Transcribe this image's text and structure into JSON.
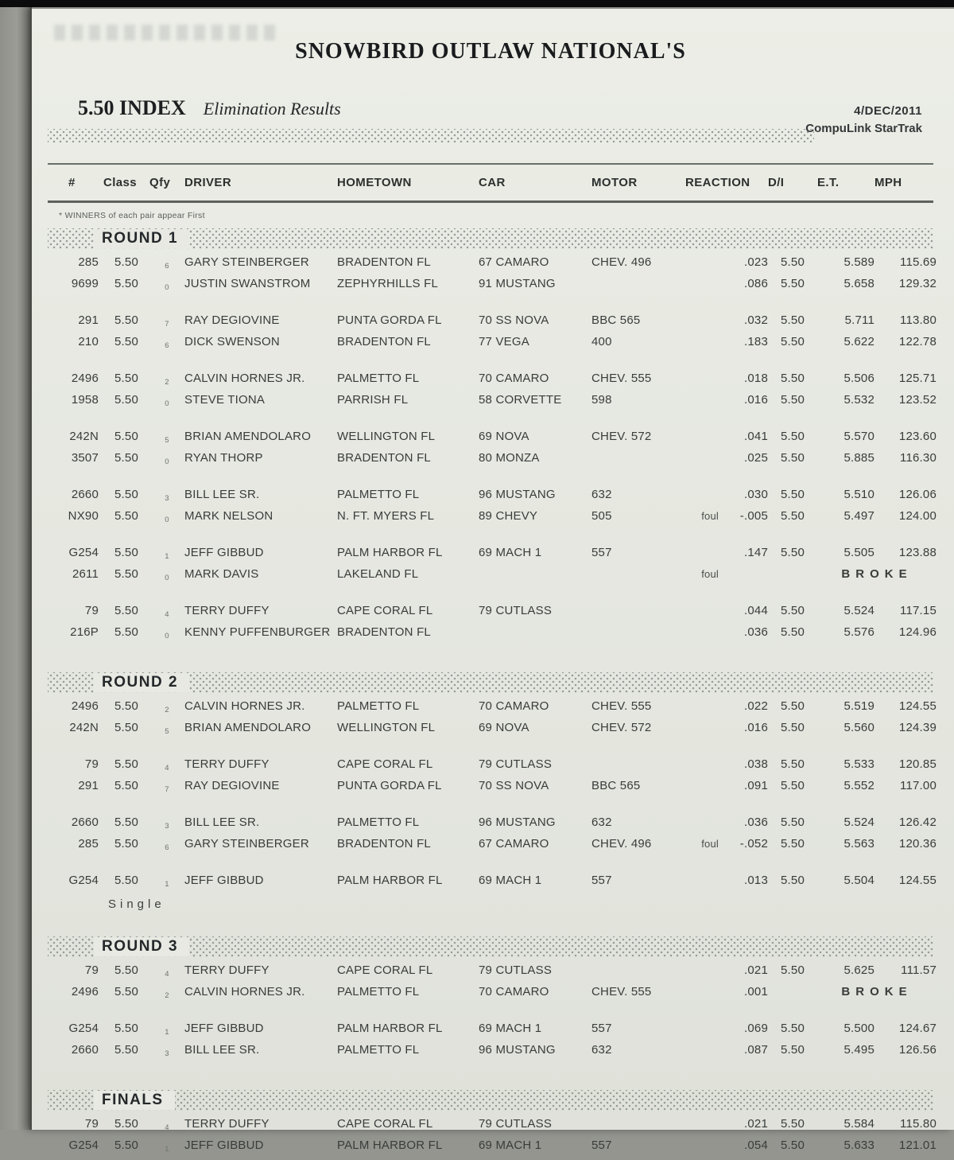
{
  "page": {
    "title": "SNOWBIRD OUTLAW NATIONAL'S",
    "index_label": "5.50 INDEX",
    "subtitle": "Elimination Results",
    "date": "4/DEC/2011",
    "system": "CompuLink StarTrak",
    "note": "* WINNERS of each pair appear First"
  },
  "columns": [
    "#",
    "Class",
    "Qfy",
    "DRIVER",
    "HOMETOWN",
    "CAR",
    "MOTOR",
    "REACTION",
    "D/I",
    "E.T.",
    "MPH"
  ],
  "sections": [
    {
      "label": "ROUND 1",
      "pairs": [
        {
          "rows": [
            {
              "num": "285",
              "cls": "5.50",
              "qfy": "6",
              "driver": "GARY STEINBERGER",
              "home": "BRADENTON FL",
              "car": "67 CAMARO",
              "motor": "CHEV. 496",
              "foul": "",
              "rx": ".023",
              "di": "5.50",
              "et": "5.589",
              "mph": "115.69"
            },
            {
              "num": "9699",
              "cls": "5.50",
              "qfy": "0",
              "driver": "JUSTIN SWANSTROM",
              "home": "ZEPHYRHILLS FL",
              "car": "91 MUSTANG",
              "motor": "",
              "foul": "",
              "rx": ".086",
              "di": "5.50",
              "et": "5.658",
              "mph": "129.32"
            }
          ]
        },
        {
          "rows": [
            {
              "num": "291",
              "cls": "5.50",
              "qfy": "7",
              "driver": "RAY DEGIOVINE",
              "home": "PUNTA GORDA FL",
              "car": "70 SS NOVA",
              "motor": "BBC 565",
              "foul": "",
              "rx": ".032",
              "di": "5.50",
              "et": "5.711",
              "mph": "113.80"
            },
            {
              "num": "210",
              "cls": "5.50",
              "qfy": "6",
              "driver": "DICK SWENSON",
              "home": "BRADENTON FL",
              "car": "77 VEGA",
              "motor": "400",
              "foul": "",
              "rx": ".183",
              "di": "5.50",
              "et": "5.622",
              "mph": "122.78"
            }
          ]
        },
        {
          "rows": [
            {
              "num": "2496",
              "cls": "5.50",
              "qfy": "2",
              "driver": "CALVIN HORNES JR.",
              "home": "PALMETTO FL",
              "car": "70 CAMARO",
              "motor": "CHEV. 555",
              "foul": "",
              "rx": ".018",
              "di": "5.50",
              "et": "5.506",
              "mph": "125.71"
            },
            {
              "num": "1958",
              "cls": "5.50",
              "qfy": "0",
              "driver": "STEVE TIONA",
              "home": "PARRISH FL",
              "car": "58 CORVETTE",
              "motor": "598",
              "foul": "",
              "rx": ".016",
              "di": "5.50",
              "et": "5.532",
              "mph": "123.52"
            }
          ]
        },
        {
          "rows": [
            {
              "num": "242N",
              "cls": "5.50",
              "qfy": "5",
              "driver": "BRIAN AMENDOLARO",
              "home": "WELLINGTON FL",
              "car": "69 NOVA",
              "motor": "CHEV. 572",
              "foul": "",
              "rx": ".041",
              "di": "5.50",
              "et": "5.570",
              "mph": "123.60"
            },
            {
              "num": "3507",
              "cls": "5.50",
              "qfy": "0",
              "driver": "RYAN THORP",
              "home": "BRADENTON FL",
              "car": "80 MONZA",
              "motor": "",
              "foul": "",
              "rx": ".025",
              "di": "5.50",
              "et": "5.885",
              "mph": "116.30"
            }
          ]
        },
        {
          "rows": [
            {
              "num": "2660",
              "cls": "5.50",
              "qfy": "3",
              "driver": "BILL LEE SR.",
              "home": "PALMETTO FL",
              "car": "96 MUSTANG",
              "motor": "632",
              "foul": "",
              "rx": ".030",
              "di": "5.50",
              "et": "5.510",
              "mph": "126.06"
            },
            {
              "num": "NX90",
              "cls": "5.50",
              "qfy": "0",
              "driver": "MARK NELSON",
              "home": "N. FT. MYERS FL",
              "car": "89 CHEVY",
              "motor": "505",
              "foul": "foul",
              "rx": "-.005",
              "di": "5.50",
              "et": "5.497",
              "mph": "124.00"
            }
          ]
        },
        {
          "rows": [
            {
              "num": "G254",
              "cls": "5.50",
              "qfy": "1",
              "driver": "JEFF GIBBUD",
              "home": "PALM HARBOR FL",
              "car": "69 MACH 1",
              "motor": "557",
              "foul": "",
              "rx": ".147",
              "di": "5.50",
              "et": "5.505",
              "mph": "123.88"
            },
            {
              "num": "2611",
              "cls": "5.50",
              "qfy": "0",
              "driver": "MARK DAVIS",
              "home": "LAKELAND FL",
              "car": "",
              "motor": "",
              "foul": "foul",
              "rx": "",
              "di": "",
              "et": "BROKE",
              "mph": "",
              "broke": true
            }
          ]
        },
        {
          "rows": [
            {
              "num": "79",
              "cls": "5.50",
              "qfy": "4",
              "driver": "TERRY DUFFY",
              "home": "CAPE CORAL FL",
              "car": "79 CUTLASS",
              "motor": "",
              "foul": "",
              "rx": ".044",
              "di": "5.50",
              "et": "5.524",
              "mph": "117.15"
            },
            {
              "num": "216P",
              "cls": "5.50",
              "qfy": "0",
              "driver": "KENNY PUFFENBURGER",
              "home": "BRADENTON FL",
              "car": "",
              "motor": "",
              "foul": "",
              "rx": ".036",
              "di": "5.50",
              "et": "5.576",
              "mph": "124.96"
            }
          ]
        }
      ]
    },
    {
      "label": "ROUND 2",
      "pairs": [
        {
          "rows": [
            {
              "num": "2496",
              "cls": "5.50",
              "qfy": "2",
              "driver": "CALVIN HORNES JR.",
              "home": "PALMETTO FL",
              "car": "70 CAMARO",
              "motor": "CHEV. 555",
              "foul": "",
              "rx": ".022",
              "di": "5.50",
              "et": "5.519",
              "mph": "124.55"
            },
            {
              "num": "242N",
              "cls": "5.50",
              "qfy": "5",
              "driver": "BRIAN AMENDOLARO",
              "home": "WELLINGTON FL",
              "car": "69 NOVA",
              "motor": "CHEV. 572",
              "foul": "",
              "rx": ".016",
              "di": "5.50",
              "et": "5.560",
              "mph": "124.39"
            }
          ]
        },
        {
          "rows": [
            {
              "num": "79",
              "cls": "5.50",
              "qfy": "4",
              "driver": "TERRY DUFFY",
              "home": "CAPE CORAL FL",
              "car": "79 CUTLASS",
              "motor": "",
              "foul": "",
              "rx": ".038",
              "di": "5.50",
              "et": "5.533",
              "mph": "120.85"
            },
            {
              "num": "291",
              "cls": "5.50",
              "qfy": "7",
              "driver": "RAY DEGIOVINE",
              "home": "PUNTA GORDA FL",
              "car": "70 SS NOVA",
              "motor": "BBC 565",
              "foul": "",
              "rx": ".091",
              "di": "5.50",
              "et": "5.552",
              "mph": "117.00"
            }
          ]
        },
        {
          "rows": [
            {
              "num": "2660",
              "cls": "5.50",
              "qfy": "3",
              "driver": "BILL LEE SR.",
              "home": "PALMETTO FL",
              "car": "96 MUSTANG",
              "motor": "632",
              "foul": "",
              "rx": ".036",
              "di": "5.50",
              "et": "5.524",
              "mph": "126.42"
            },
            {
              "num": "285",
              "cls": "5.50",
              "qfy": "6",
              "driver": "GARY STEINBERGER",
              "home": "BRADENTON FL",
              "car": "67 CAMARO",
              "motor": "CHEV. 496",
              "foul": "foul",
              "rx": "-.052",
              "di": "5.50",
              "et": "5.563",
              "mph": "120.36"
            }
          ]
        },
        {
          "rows": [
            {
              "num": "G254",
              "cls": "5.50",
              "qfy": "1",
              "driver": "JEFF GIBBUD",
              "home": "PALM HARBOR FL",
              "car": "69 MACH 1",
              "motor": "557",
              "foul": "",
              "rx": ".013",
              "di": "5.50",
              "et": "5.504",
              "mph": "124.55"
            }
          ],
          "note": "Single"
        }
      ]
    },
    {
      "label": "ROUND 3",
      "pairs": [
        {
          "rows": [
            {
              "num": "79",
              "cls": "5.50",
              "qfy": "4",
              "driver": "TERRY DUFFY",
              "home": "CAPE CORAL FL",
              "car": "79 CUTLASS",
              "motor": "",
              "foul": "",
              "rx": ".021",
              "di": "5.50",
              "et": "5.625",
              "mph": "111.57"
            },
            {
              "num": "2496",
              "cls": "5.50",
              "qfy": "2",
              "driver": "CALVIN HORNES JR.",
              "home": "PALMETTO FL",
              "car": "70 CAMARO",
              "motor": "CHEV. 555",
              "foul": "",
              "rx": ".001",
              "di": "",
              "et": "BROKE",
              "mph": "",
              "broke": true
            }
          ]
        },
        {
          "rows": [
            {
              "num": "G254",
              "cls": "5.50",
              "qfy": "1",
              "driver": "JEFF GIBBUD",
              "home": "PALM HARBOR FL",
              "car": "69 MACH 1",
              "motor": "557",
              "foul": "",
              "rx": ".069",
              "di": "5.50",
              "et": "5.500",
              "mph": "124.67"
            },
            {
              "num": "2660",
              "cls": "5.50",
              "qfy": "3",
              "driver": "BILL LEE SR.",
              "home": "PALMETTO FL",
              "car": "96 MUSTANG",
              "motor": "632",
              "foul": "",
              "rx": ".087",
              "di": "5.50",
              "et": "5.495",
              "mph": "126.56"
            }
          ]
        }
      ]
    },
    {
      "label": "FINALS",
      "pairs": [
        {
          "rows": [
            {
              "num": "79",
              "cls": "5.50",
              "qfy": "4",
              "driver": "TERRY DUFFY",
              "home": "CAPE CORAL FL",
              "car": "79 CUTLASS",
              "motor": "",
              "foul": "",
              "rx": ".021",
              "di": "5.50",
              "et": "5.584",
              "mph": "115.80"
            },
            {
              "num": "G254",
              "cls": "5.50",
              "qfy": "1",
              "driver": "JEFF GIBBUD",
              "home": "PALM HARBOR FL",
              "car": "69 MACH 1",
              "motor": "557",
              "foul": "",
              "rx": ".054",
              "di": "5.50",
              "et": "5.633",
              "mph": "121.01"
            }
          ]
        }
      ]
    }
  ]
}
